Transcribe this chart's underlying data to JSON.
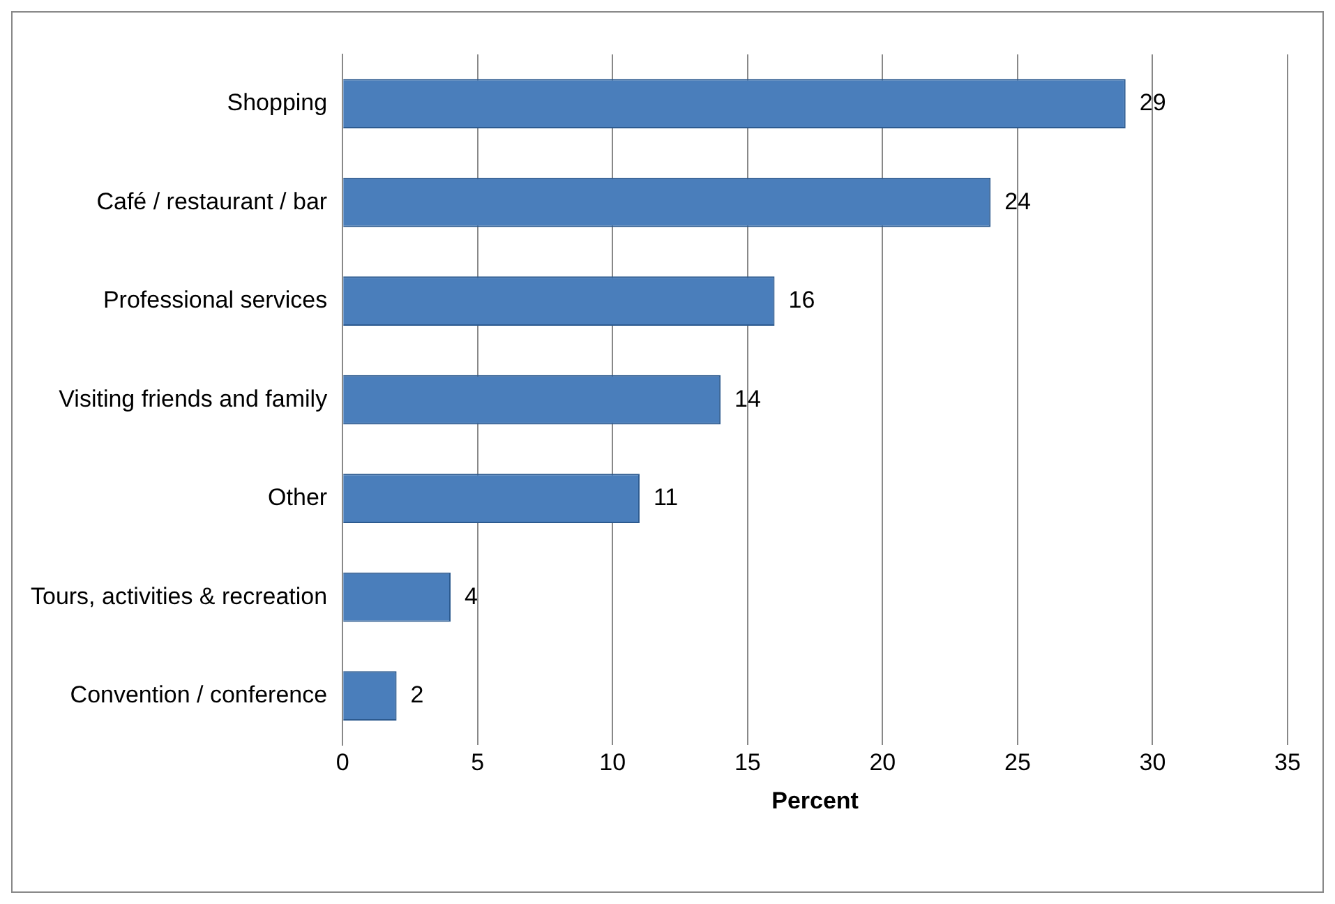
{
  "chart_data": {
    "type": "bar",
    "orientation": "horizontal",
    "xlabel": "Percent",
    "categories": [
      "Shopping",
      "Café / restaurant / bar",
      "Professional services",
      "Visiting friends and family",
      "Other",
      "Tours, activities & recreation",
      "Convention / conference"
    ],
    "values": [
      29,
      24,
      16,
      14,
      11,
      4,
      2
    ],
    "color": "#4a7ebb",
    "xlim": [
      0,
      35
    ],
    "xticks": [
      0,
      5,
      10,
      15,
      20,
      25,
      30,
      35
    ],
    "grid": "x",
    "data_labels": true,
    "legend": false
  }
}
